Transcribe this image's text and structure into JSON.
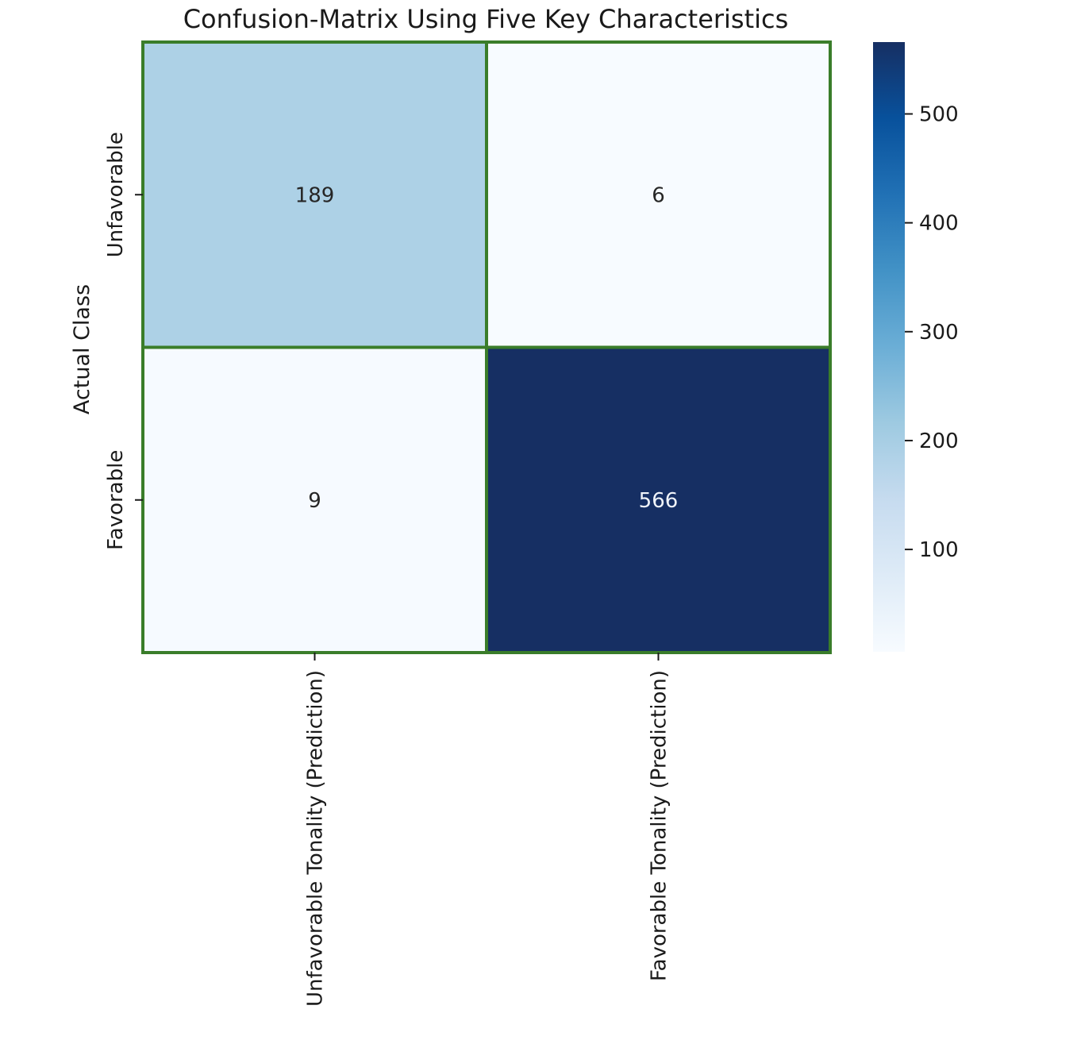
{
  "chart_data": {
    "type": "heatmap",
    "title": "Confusion-Matrix Using Five Key Characteristics",
    "xlabel": "",
    "ylabel": "Actual Class",
    "x_categories": [
      "Unfavorable Tonality (Prediction)",
      "Favorable Tonality (Prediction)"
    ],
    "y_categories": [
      "Unfavorable",
      "Favorable"
    ],
    "values": [
      [
        189,
        6
      ],
      [
        9,
        566
      ]
    ],
    "colorbar": {
      "min": 6,
      "max": 566,
      "ticks": [
        100,
        200,
        300,
        400,
        500
      ],
      "colormap": "Blues"
    },
    "cell_border_color": "#3a7d2a",
    "grid": false
  }
}
